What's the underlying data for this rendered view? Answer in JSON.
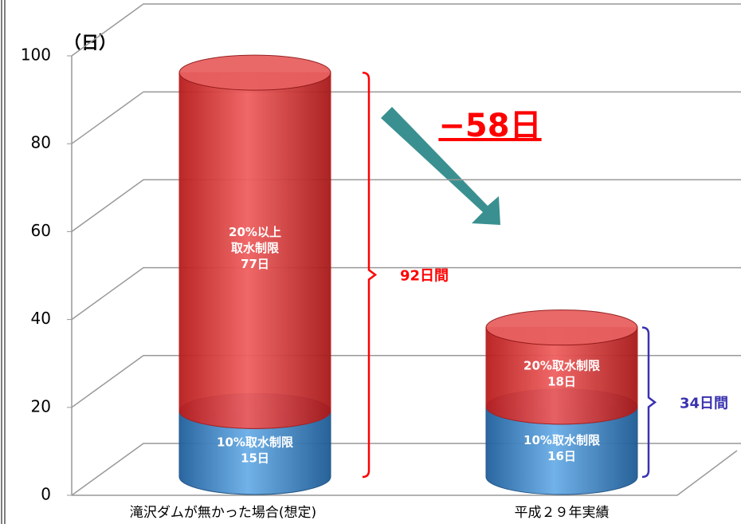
{
  "chart_data": {
    "type": "bar",
    "stacked": true,
    "ylabel": "（日）",
    "categories": [
      "滝沢ダムが無かった場合(想定)",
      "平成２９年実績"
    ],
    "series": [
      {
        "color": "#3a86c8",
        "values": [
          15,
          16
        ],
        "value_labels": [
          "10%取水制限\n15日",
          "10%取水制限\n16日"
        ]
      },
      {
        "color": "#e03030",
        "values": [
          77,
          18
        ],
        "value_labels": [
          "20%以上\n取水制限\n77日",
          "20%取水制限\n18日"
        ]
      }
    ],
    "brackets": [
      {
        "label": "92日間",
        "value": 92,
        "color": "#ff0000"
      },
      {
        "label": "34日間",
        "value": 34,
        "color": "#3a32b0"
      }
    ],
    "difference_label": "−58日",
    "ylim": [
      0,
      100
    ],
    "yticks": [
      0,
      20,
      40,
      60,
      80,
      100
    ],
    "grid": true
  }
}
